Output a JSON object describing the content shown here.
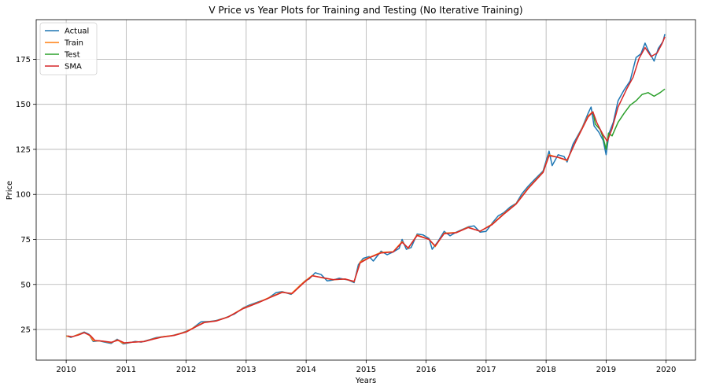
{
  "chart_data": {
    "type": "line",
    "title": "V Price vs Year Plots for Training and Testing (No Iterative Training)",
    "xlabel": "Years",
    "ylabel": "Price",
    "xlim": [
      2009.5,
      2020.49
    ],
    "ylim": [
      8,
      197
    ],
    "x_ticks": [
      2010,
      2011,
      2012,
      2013,
      2014,
      2015,
      2016,
      2017,
      2018,
      2019,
      2020
    ],
    "y_ticks": [
      25,
      50,
      75,
      100,
      125,
      150,
      175
    ],
    "grid": true,
    "legend_position": "top-left",
    "colors": {
      "actual": "#1f77b4",
      "train": "#ff7f0e",
      "test": "#2ca02c",
      "sma": "#d62728",
      "grid": "#b0b0b0"
    },
    "series": [
      {
        "name": "Actual",
        "color": "#1f77b4",
        "points": [
          [
            2010.0,
            21.5
          ],
          [
            2010.08,
            20.6
          ],
          [
            2010.18,
            22.0
          ],
          [
            2010.3,
            23.6
          ],
          [
            2010.38,
            22.3
          ],
          [
            2010.45,
            18.4
          ],
          [
            2010.55,
            18.7
          ],
          [
            2010.65,
            17.9
          ],
          [
            2010.75,
            17.3
          ],
          [
            2010.85,
            19.6
          ],
          [
            2010.95,
            17.0
          ],
          [
            2011.05,
            17.6
          ],
          [
            2011.15,
            18.4
          ],
          [
            2011.25,
            18.0
          ],
          [
            2011.4,
            19.5
          ],
          [
            2011.5,
            20.5
          ],
          [
            2011.6,
            21.0
          ],
          [
            2011.75,
            21.5
          ],
          [
            2011.9,
            22.8
          ],
          [
            2012.0,
            24.0
          ],
          [
            2012.1,
            25.5
          ],
          [
            2012.25,
            29.3
          ],
          [
            2012.4,
            29.5
          ],
          [
            2012.5,
            30.0
          ],
          [
            2012.65,
            31.5
          ],
          [
            2012.8,
            33.5
          ],
          [
            2012.95,
            37.0
          ],
          [
            2013.05,
            38.5
          ],
          [
            2013.2,
            40.3
          ],
          [
            2013.35,
            42.0
          ],
          [
            2013.5,
            45.5
          ],
          [
            2013.6,
            46.0
          ],
          [
            2013.75,
            44.5
          ],
          [
            2013.9,
            49.5
          ],
          [
            2014.0,
            52.5
          ],
          [
            2014.05,
            53.0
          ],
          [
            2014.15,
            56.5
          ],
          [
            2014.25,
            55.5
          ],
          [
            2014.35,
            52.0
          ],
          [
            2014.45,
            52.5
          ],
          [
            2014.55,
            53.5
          ],
          [
            2014.7,
            52.5
          ],
          [
            2014.8,
            51.0
          ],
          [
            2014.87,
            61.0
          ],
          [
            2014.95,
            64.5
          ],
          [
            2015.05,
            65.5
          ],
          [
            2015.12,
            63.0
          ],
          [
            2015.25,
            68.5
          ],
          [
            2015.35,
            66.5
          ],
          [
            2015.45,
            68.0
          ],
          [
            2015.55,
            70.0
          ],
          [
            2015.6,
            75.0
          ],
          [
            2015.67,
            69.5
          ],
          [
            2015.75,
            70.5
          ],
          [
            2015.85,
            78.0
          ],
          [
            2015.95,
            77.5
          ],
          [
            2016.05,
            75.5
          ],
          [
            2016.1,
            69.5
          ],
          [
            2016.2,
            74.0
          ],
          [
            2016.3,
            79.5
          ],
          [
            2016.4,
            77.0
          ],
          [
            2016.5,
            79.0
          ],
          [
            2016.6,
            80.5
          ],
          [
            2016.7,
            82.0
          ],
          [
            2016.8,
            82.5
          ],
          [
            2016.9,
            79.0
          ],
          [
            2017.0,
            79.5
          ],
          [
            2017.1,
            84.0
          ],
          [
            2017.2,
            88.0
          ],
          [
            2017.3,
            90.0
          ],
          [
            2017.4,
            93.0
          ],
          [
            2017.5,
            95.0
          ],
          [
            2017.6,
            100.5
          ],
          [
            2017.7,
            104.5
          ],
          [
            2017.8,
            108.0
          ],
          [
            2017.95,
            113.0
          ],
          [
            2018.05,
            124.0
          ],
          [
            2018.1,
            116.0
          ],
          [
            2018.2,
            122.0
          ],
          [
            2018.3,
            121.0
          ],
          [
            2018.35,
            118.0
          ],
          [
            2018.45,
            128.0
          ],
          [
            2018.5,
            131.0
          ],
          [
            2018.6,
            137.0
          ],
          [
            2018.7,
            145.0
          ],
          [
            2018.75,
            148.5
          ],
          [
            2018.8,
            138.0
          ],
          [
            2018.88,
            134.5
          ],
          [
            2018.95,
            130.0
          ],
          [
            2019.0,
            122.0
          ],
          [
            2019.05,
            134.0
          ],
          [
            2019.12,
            140.0
          ],
          [
            2019.2,
            152.0
          ],
          [
            2019.3,
            158.0
          ],
          [
            2019.4,
            163.0
          ],
          [
            2019.5,
            176.0
          ],
          [
            2019.58,
            178.0
          ],
          [
            2019.65,
            184.0
          ],
          [
            2019.7,
            180.0
          ],
          [
            2019.8,
            174.0
          ],
          [
            2019.87,
            181.0
          ],
          [
            2019.95,
            185.0
          ],
          [
            2019.98,
            189.0
          ]
        ]
      },
      {
        "name": "Train",
        "color": "#ff7f0e",
        "points": [
          [
            2010.0,
            21.3
          ],
          [
            2010.1,
            20.9
          ],
          [
            2010.2,
            22.2
          ],
          [
            2010.3,
            23.3
          ],
          [
            2010.4,
            21.5
          ],
          [
            2010.45,
            18.8
          ],
          [
            2010.6,
            18.5
          ],
          [
            2010.75,
            17.7
          ],
          [
            2010.85,
            19.2
          ],
          [
            2010.95,
            17.4
          ],
          [
            2011.1,
            17.9
          ],
          [
            2011.3,
            18.4
          ],
          [
            2011.45,
            19.8
          ],
          [
            2011.6,
            20.9
          ],
          [
            2011.8,
            21.8
          ],
          [
            2012.0,
            23.8
          ],
          [
            2012.15,
            26.5
          ],
          [
            2012.3,
            29.0
          ],
          [
            2012.5,
            29.8
          ],
          [
            2012.7,
            32.0
          ],
          [
            2012.95,
            36.8
          ],
          [
            2013.2,
            40.0
          ],
          [
            2013.4,
            43.0
          ],
          [
            2013.6,
            45.8
          ],
          [
            2013.75,
            44.8
          ],
          [
            2013.95,
            51.0
          ],
          [
            2014.1,
            55.0
          ],
          [
            2014.3,
            53.5
          ],
          [
            2014.45,
            52.6
          ],
          [
            2014.65,
            53.0
          ],
          [
            2014.8,
            51.5
          ],
          [
            2014.9,
            62.5
          ],
          [
            2015.05,
            65.0
          ],
          [
            2015.25,
            67.8
          ],
          [
            2015.45,
            68.2
          ],
          [
            2015.6,
            73.8
          ],
          [
            2015.7,
            70.0
          ],
          [
            2015.85,
            77.5
          ],
          [
            2016.05,
            75.0
          ],
          [
            2016.15,
            71.0
          ],
          [
            2016.3,
            78.5
          ],
          [
            2016.5,
            78.8
          ],
          [
            2016.7,
            81.8
          ],
          [
            2016.9,
            79.5
          ],
          [
            2017.1,
            83.5
          ],
          [
            2017.3,
            89.5
          ],
          [
            2017.5,
            94.8
          ],
          [
            2017.7,
            103.5
          ],
          [
            2017.95,
            112.5
          ],
          [
            2018.05,
            122.0
          ],
          [
            2018.2,
            120.5
          ],
          [
            2018.35,
            118.8
          ],
          [
            2018.5,
            130.0
          ],
          [
            2018.7,
            143.5
          ],
          [
            2018.78,
            146.0
          ]
        ]
      },
      {
        "name": "Test",
        "color": "#2ca02c",
        "points": [
          [
            2018.78,
            146.0
          ],
          [
            2018.82,
            139.0
          ],
          [
            2018.9,
            136.0
          ],
          [
            2018.95,
            131.5
          ],
          [
            2019.0,
            125.0
          ],
          [
            2019.04,
            134.0
          ],
          [
            2019.1,
            132.5
          ],
          [
            2019.2,
            140.0
          ],
          [
            2019.3,
            145.0
          ],
          [
            2019.4,
            149.5
          ],
          [
            2019.5,
            152.0
          ],
          [
            2019.6,
            155.5
          ],
          [
            2019.7,
            156.5
          ],
          [
            2019.8,
            154.5
          ],
          [
            2019.9,
            156.5
          ],
          [
            2019.98,
            158.5
          ]
        ]
      },
      {
        "name": "SMA",
        "color": "#d62728",
        "points": [
          [
            2010.02,
            21.4
          ],
          [
            2010.1,
            21.0
          ],
          [
            2010.2,
            21.9
          ],
          [
            2010.3,
            23.2
          ],
          [
            2010.4,
            21.8
          ],
          [
            2010.48,
            18.9
          ],
          [
            2010.6,
            18.6
          ],
          [
            2010.75,
            17.9
          ],
          [
            2010.87,
            19.1
          ],
          [
            2010.97,
            17.6
          ],
          [
            2011.1,
            17.9
          ],
          [
            2011.3,
            18.3
          ],
          [
            2011.45,
            19.6
          ],
          [
            2011.6,
            20.8
          ],
          [
            2011.8,
            21.7
          ],
          [
            2012.0,
            23.6
          ],
          [
            2012.15,
            26.3
          ],
          [
            2012.3,
            28.8
          ],
          [
            2012.5,
            29.7
          ],
          [
            2012.7,
            31.9
          ],
          [
            2012.95,
            36.6
          ],
          [
            2013.2,
            39.8
          ],
          [
            2013.4,
            42.8
          ],
          [
            2013.6,
            45.6
          ],
          [
            2013.77,
            45.0
          ],
          [
            2013.95,
            50.6
          ],
          [
            2014.1,
            54.8
          ],
          [
            2014.3,
            53.6
          ],
          [
            2014.45,
            52.7
          ],
          [
            2014.65,
            53.0
          ],
          [
            2014.8,
            51.7
          ],
          [
            2014.9,
            62.0
          ],
          [
            2015.05,
            64.8
          ],
          [
            2015.25,
            67.5
          ],
          [
            2015.45,
            68.0
          ],
          [
            2015.6,
            73.4
          ],
          [
            2015.7,
            70.3
          ],
          [
            2015.85,
            77.2
          ],
          [
            2016.05,
            75.0
          ],
          [
            2016.15,
            71.4
          ],
          [
            2016.3,
            78.2
          ],
          [
            2016.5,
            78.7
          ],
          [
            2016.7,
            81.6
          ],
          [
            2016.9,
            79.6
          ],
          [
            2017.1,
            83.2
          ],
          [
            2017.3,
            89.2
          ],
          [
            2017.5,
            94.6
          ],
          [
            2017.7,
            103.2
          ],
          [
            2017.95,
            112.2
          ],
          [
            2018.05,
            121.5
          ],
          [
            2018.2,
            120.6
          ],
          [
            2018.35,
            119.0
          ],
          [
            2018.5,
            129.8
          ],
          [
            2018.7,
            143.0
          ],
          [
            2018.78,
            145.8
          ],
          [
            2018.85,
            139.5
          ],
          [
            2018.95,
            133.0
          ],
          [
            2019.02,
            129.5
          ],
          [
            2019.1,
            136.5
          ],
          [
            2019.2,
            148.5
          ],
          [
            2019.35,
            159.0
          ],
          [
            2019.45,
            165.0
          ],
          [
            2019.55,
            175.5
          ],
          [
            2019.65,
            181.5
          ],
          [
            2019.75,
            176.5
          ],
          [
            2019.85,
            178.5
          ],
          [
            2019.93,
            183.5
          ],
          [
            2019.98,
            187.5
          ]
        ]
      }
    ]
  }
}
